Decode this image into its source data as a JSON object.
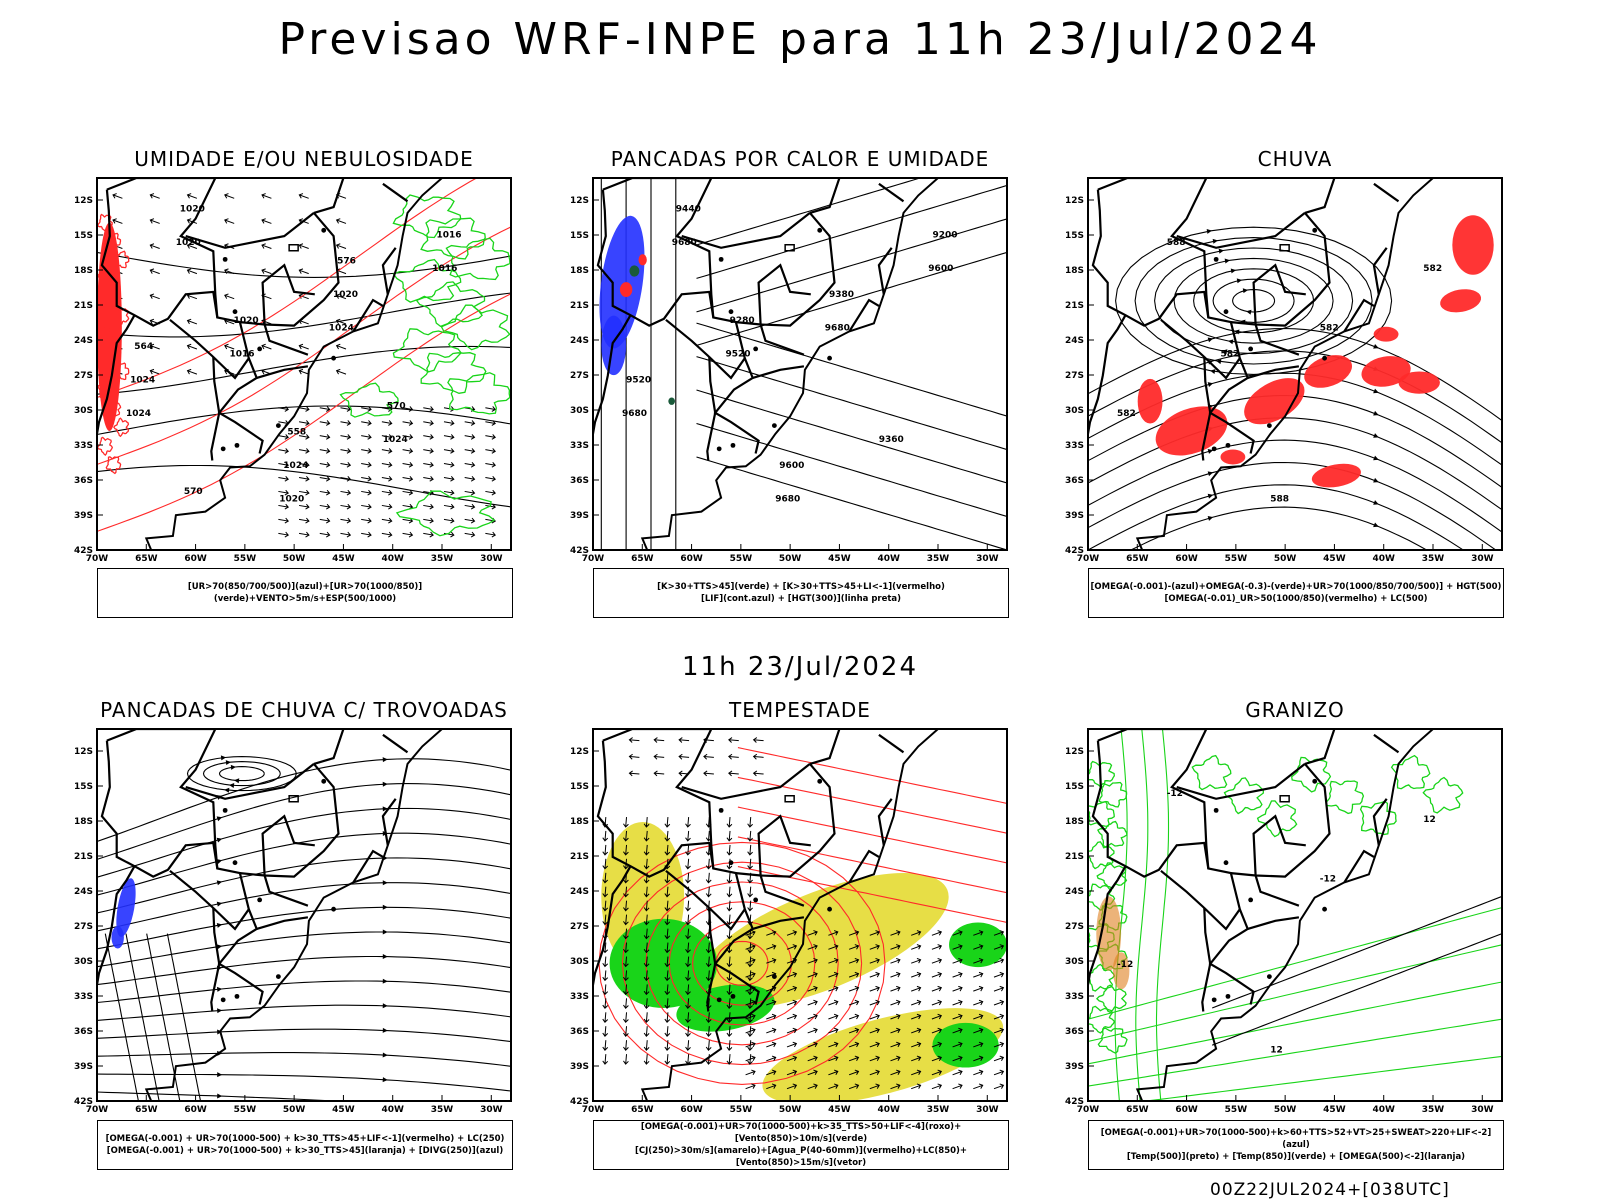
{
  "title": "Previsao WRF-INPE  para 11h 23/Jul/2024",
  "middle_title": "11h 23/Jul/2024",
  "footer": "00Z22JUL2024+[038UTC]",
  "colors": {
    "red": "#ff2a2a",
    "green": "#19d419",
    "blue": "#2230ff",
    "yellow": "#e6dc3c",
    "black": "#000000",
    "orange": "#e08020"
  },
  "chart_data": [
    {
      "type": "map",
      "title": "UMIDADE E/OU NEBULOSIDADE",
      "legend": [
        "[UR>70(850/700/500)](azul)+[UR>70(1000/850)](verde)+VENTO>5m/s+ESP(500/1000)"
      ],
      "lat_ticks": [
        "12S",
        "15S",
        "18S",
        "21S",
        "24S",
        "27S",
        "30S",
        "33S",
        "36S",
        "39S",
        "42S"
      ],
      "lon_ticks": [
        "70W",
        "65W",
        "60W",
        "55W",
        "50W",
        "45W",
        "40W",
        "35W",
        "30W"
      ],
      "contour_labels": [
        "1020",
        "1024",
        "1024",
        "1020",
        "1016",
        "1016",
        "1024",
        "1020",
        "1020",
        "1024",
        "1024",
        "1016",
        "1020",
        "570",
        "570",
        "576",
        "564",
        "558"
      ]
    },
    {
      "type": "map",
      "title": "PANCADAS POR CALOR E UMIDADE",
      "legend": [
        "[K>30+TTS>45](verde) + [K>30+TTS>45+LI<-1](vermelho)",
        "[LIF](cont.azul) + [HGT(300)](linha preta)"
      ],
      "lat_ticks": [
        "12S",
        "15S",
        "18S",
        "21S",
        "24S",
        "27S",
        "30S",
        "33S",
        "36S",
        "39S",
        "42S"
      ],
      "lon_ticks": [
        "70W",
        "65W",
        "60W",
        "55W",
        "50W",
        "45W",
        "40W",
        "35W",
        "30W"
      ],
      "contour_labels": [
        "9680",
        "9680",
        "9680",
        "9680",
        "9600",
        "9520",
        "9360",
        "9440",
        "9380",
        "9520",
        "9600",
        "9200",
        "9280"
      ]
    },
    {
      "type": "map",
      "title": "CHUVA",
      "legend": [
        "[OMEGA(-0.001)-(azul)+OMEGA(-0.3)-(verde)+UR>70(1000/850/700/500)] + HGT(500)",
        "[OMEGA(-0.01)_UR>50(1000/850)(vermelho) + LC(500)"
      ],
      "lat_ticks": [
        "12S",
        "15S",
        "18S",
        "21S",
        "24S",
        "27S",
        "30S",
        "33S",
        "36S",
        "39S",
        "42S"
      ],
      "lon_ticks": [
        "70W",
        "65W",
        "60W",
        "55W",
        "50W",
        "45W",
        "40W",
        "35W",
        "30W"
      ],
      "contour_labels": [
        "588",
        "582",
        "582",
        "588",
        "582",
        "582"
      ]
    },
    {
      "type": "map",
      "title": "PANCADAS DE CHUVA C/ TROVOADAS",
      "legend": [
        "[OMEGA(-0.001) + UR>70(1000-500) + k>30_TTS>45+LIF<-1](vermelho) + LC(250)",
        "[OMEGA(-0.001) + UR>70(1000-500) + k>30_TTS>45](laranja) + [DIVG(250)](azul)"
      ],
      "lat_ticks": [
        "12S",
        "15S",
        "18S",
        "21S",
        "24S",
        "27S",
        "30S",
        "33S",
        "36S",
        "39S",
        "42S"
      ],
      "lon_ticks": [
        "70W",
        "65W",
        "60W",
        "55W",
        "50W",
        "45W",
        "40W",
        "35W",
        "30W"
      ]
    },
    {
      "type": "map",
      "title": "TEMPESTADE",
      "legend": [
        "[OMEGA(-0.001)+UR>70(1000-500)+k>35_TTS>50+LIF<-4](roxo)+[Vento(850)>10m/s](verde)",
        "[CJ(250)>30m/s](amarelo)+[Agua_P(40-60mm)](vermelho)+LC(850)+[Vento(850)>15m/s](vetor)"
      ],
      "lat_ticks": [
        "12S",
        "15S",
        "18S",
        "21S",
        "24S",
        "27S",
        "30S",
        "33S",
        "36S",
        "39S",
        "42S"
      ],
      "lon_ticks": [
        "70W",
        "65W",
        "60W",
        "55W",
        "50W",
        "45W",
        "40W",
        "35W",
        "30W"
      ]
    },
    {
      "type": "map",
      "title": "GRANIZO",
      "legend": [
        "[OMEGA(-0.001)+UR>70(1000-500)+k>60+TTS>52+VT>25+SWEAT>220+LIF<-2](azul)",
        "[Temp(500)](preto) + [Temp(850)](verde) + [OMEGA(500)<-2](laranja)"
      ],
      "lat_ticks": [
        "12S",
        "15S",
        "18S",
        "21S",
        "24S",
        "27S",
        "30S",
        "33S",
        "36S",
        "39S",
        "42S"
      ],
      "lon_ticks": [
        "70W",
        "65W",
        "60W",
        "55W",
        "50W",
        "45W",
        "40W",
        "35W",
        "30W"
      ],
      "contour_labels": [
        "-12",
        "-12",
        "-12",
        "12",
        "12"
      ]
    }
  ]
}
